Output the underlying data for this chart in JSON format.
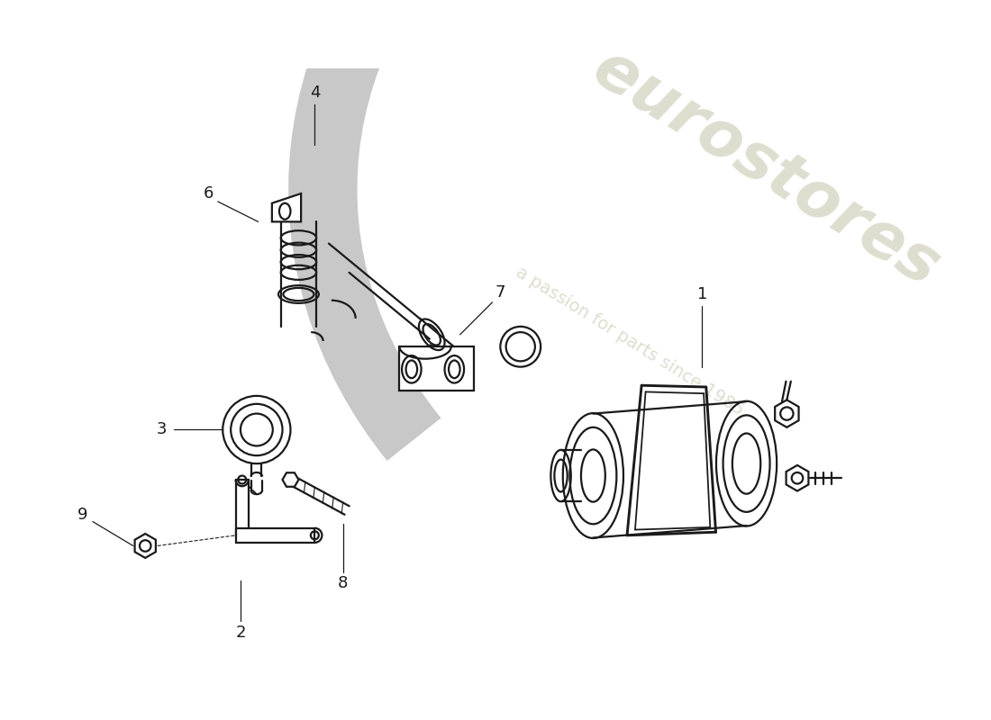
{
  "background_color": "#ffffff",
  "line_color": "#1a1a1a",
  "lw": 1.6,
  "watermark_color": "#deded0",
  "figsize": [
    11.0,
    8.0
  ],
  "dpi": 100,
  "swoosh_color": "#cccccc",
  "part_numbers": [
    "1",
    "2",
    "3",
    "4",
    "6",
    "7",
    "8",
    "9"
  ]
}
